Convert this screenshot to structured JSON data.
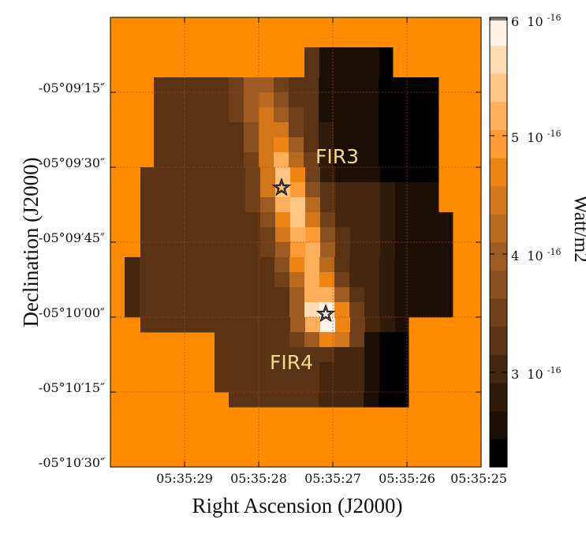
{
  "chart_data": {
    "type": "heatmap",
    "xlabel": "Right Ascension (J2000)",
    "ylabel": "Declination (J2000)",
    "x_tick_labels": [
      "05:35:29",
      "05:35:28",
      "05:35:27",
      "05:35:26",
      "05:35:25"
    ],
    "y_tick_labels": [
      "-05°09′15″",
      "-05°09′30″",
      "-05°09′45″",
      "-05°10′00″",
      "-05°10′15″",
      "-05°10′30″"
    ],
    "grid": true,
    "colorbar": {
      "title": "Watt/m2",
      "labels": [
        {
          "mantissa": "6",
          "base": "10",
          "exp": "-16",
          "value": 6e-16
        },
        {
          "mantissa": "5",
          "base": "10",
          "exp": "-16",
          "value": 5e-16
        },
        {
          "mantissa": "4",
          "base": "10",
          "exp": "-16",
          "value": 4e-16
        },
        {
          "mantissa": "3",
          "base": "10",
          "exp": "-16",
          "value": 3e-16
        }
      ],
      "levels": 16,
      "colors": [
        "#000000",
        "#1a0e05",
        "#301a0a",
        "#45260f",
        "#5a3314",
        "#70401a",
        "#874e20",
        "#9e5c22",
        "#b86a1f",
        "#d2781a",
        "#ee8412",
        "#ff9a35",
        "#ffaf5a",
        "#ffc585",
        "#ffdcb4",
        "#fff3e8"
      ],
      "range": [
        2.2e-16,
        6e-16
      ],
      "position": "right"
    },
    "background_color": "#ff8c00",
    "annotations": [
      {
        "text": "FIR3"
      },
      {
        "text": "FIR4"
      }
    ],
    "markers": [
      {
        "shape": "star"
      },
      {
        "shape": "star"
      }
    ]
  }
}
